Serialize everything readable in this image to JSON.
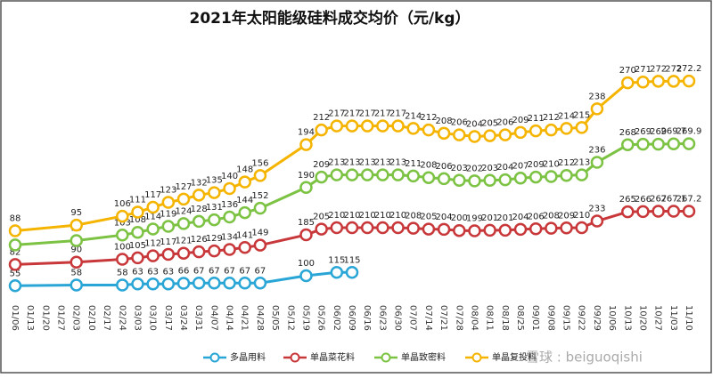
{
  "chart_data": {
    "type": "line",
    "title": "2021年太阳能级硅料成交均价（元/kg）",
    "watermark": "雪球 : beiguoqishi",
    "categories": [
      "01/06",
      "01/13",
      "01/20",
      "01/27",
      "02/03",
      "02/10",
      "02/17",
      "02/24",
      "03/03",
      "03/10",
      "03/17",
      "03/24",
      "03/31",
      "04/07",
      "04/14",
      "04/21",
      "04/28",
      "05/05",
      "05/12",
      "05/19",
      "05/26",
      "06/02",
      "06/09",
      "06/16",
      "06/23",
      "06/30",
      "07/07",
      "07/14",
      "07/21",
      "07/28",
      "08/04",
      "08/11",
      "08/18",
      "08/25",
      "09/01",
      "09/08",
      "09/15",
      "09/22",
      "09/29",
      "10/06",
      "10/13",
      "10/20",
      "10/27",
      "11/03",
      "11/10"
    ],
    "series": [
      {
        "name": "多晶用料",
        "color": "#2aa6d6",
        "ylim": [
          -20,
          1260
        ],
        "values": [
          55,
          null,
          null,
          null,
          58,
          null,
          null,
          58,
          63,
          63,
          63,
          66,
          67,
          67,
          67,
          67,
          67,
          null,
          null,
          100,
          null,
          115,
          115,
          null,
          null,
          null,
          null,
          null,
          null,
          null,
          null,
          null,
          null,
          null,
          null,
          null,
          null,
          null,
          null,
          null,
          null,
          null,
          null,
          null,
          null
        ]
      },
      {
        "name": "单晶菜花料",
        "color": "#c8383a",
        "ylim": [
          -50,
          940
        ],
        "values": [
          82,
          null,
          null,
          null,
          90,
          null,
          null,
          100,
          105,
          112,
          117,
          121,
          126,
          129,
          134,
          141,
          149,
          null,
          null,
          185,
          205,
          210,
          210,
          210,
          210,
          210,
          208,
          205,
          204,
          200,
          199,
          201,
          201,
          204,
          206,
          208,
          209,
          210,
          233,
          null,
          265,
          266,
          267,
          267.1,
          267.2
        ]
      },
      {
        "name": "单晶致密料",
        "color": "#7cc243",
        "ylim": [
          -20,
          500
        ],
        "values": [
          85,
          null,
          null,
          null,
          93,
          null,
          null,
          103,
          108,
          114,
          119,
          124,
          128,
          131,
          136,
          144,
          152,
          null,
          null,
          190,
          209,
          213,
          213,
          213,
          213,
          213,
          211,
          208,
          206,
          203,
          202,
          203,
          204,
          207,
          209,
          210,
          212,
          213,
          236,
          null,
          268,
          269,
          269,
          269.7,
          269.9
        ]
      },
      {
        "name": "单晶复投料",
        "color": "#f5b400",
        "ylim": [
          0,
          350
        ],
        "values": [
          88,
          null,
          null,
          null,
          95,
          null,
          null,
          106,
          111,
          117,
          123,
          127,
          132,
          135,
          140,
          148,
          156,
          null,
          null,
          194,
          212,
          217,
          217,
          217,
          217,
          217,
          214,
          212,
          208,
          206,
          204,
          205,
          206,
          209,
          211,
          212,
          214,
          215,
          238,
          null,
          270,
          271,
          272,
          272,
          272.2
        ]
      }
    ]
  }
}
